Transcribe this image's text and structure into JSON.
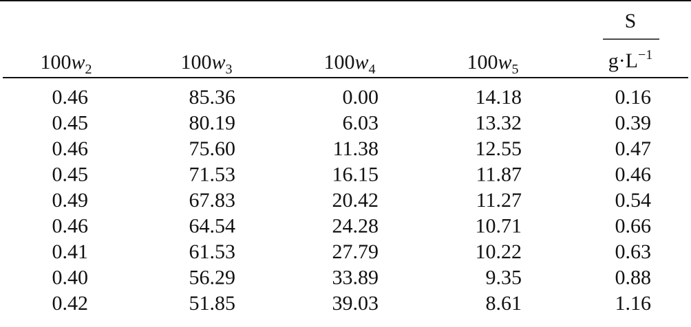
{
  "table": {
    "header": [
      {
        "prefix": "100",
        "var": "w",
        "sub": "2"
      },
      {
        "prefix": "100",
        "var": "w",
        "sub": "3"
      },
      {
        "prefix": "100",
        "var": "w",
        "sub": "4"
      },
      {
        "prefix": "100",
        "var": "w",
        "sub": "5"
      },
      {
        "numerator": "S",
        "denominator": "g·L",
        "sup": "−1"
      }
    ],
    "rows": [
      [
        "0.46",
        "85.36",
        "0.00",
        "14.18",
        "0.16"
      ],
      [
        "0.45",
        "80.19",
        "6.03",
        "13.32",
        "0.39"
      ],
      [
        "0.46",
        "75.60",
        "11.38",
        "12.55",
        "0.47"
      ],
      [
        "0.45",
        "71.53",
        "16.15",
        "11.87",
        "0.46"
      ],
      [
        "0.49",
        "67.83",
        "20.42",
        "11.27",
        "0.54"
      ],
      [
        "0.46",
        "64.54",
        "24.28",
        "10.71",
        "0.66"
      ],
      [
        "0.41",
        "61.53",
        "27.79",
        "10.22",
        "0.63"
      ],
      [
        "0.40",
        "56.29",
        "33.89",
        "9.35",
        "0.88"
      ],
      [
        "0.42",
        "51.85",
        "39.03",
        "8.61",
        "1.16"
      ]
    ]
  }
}
